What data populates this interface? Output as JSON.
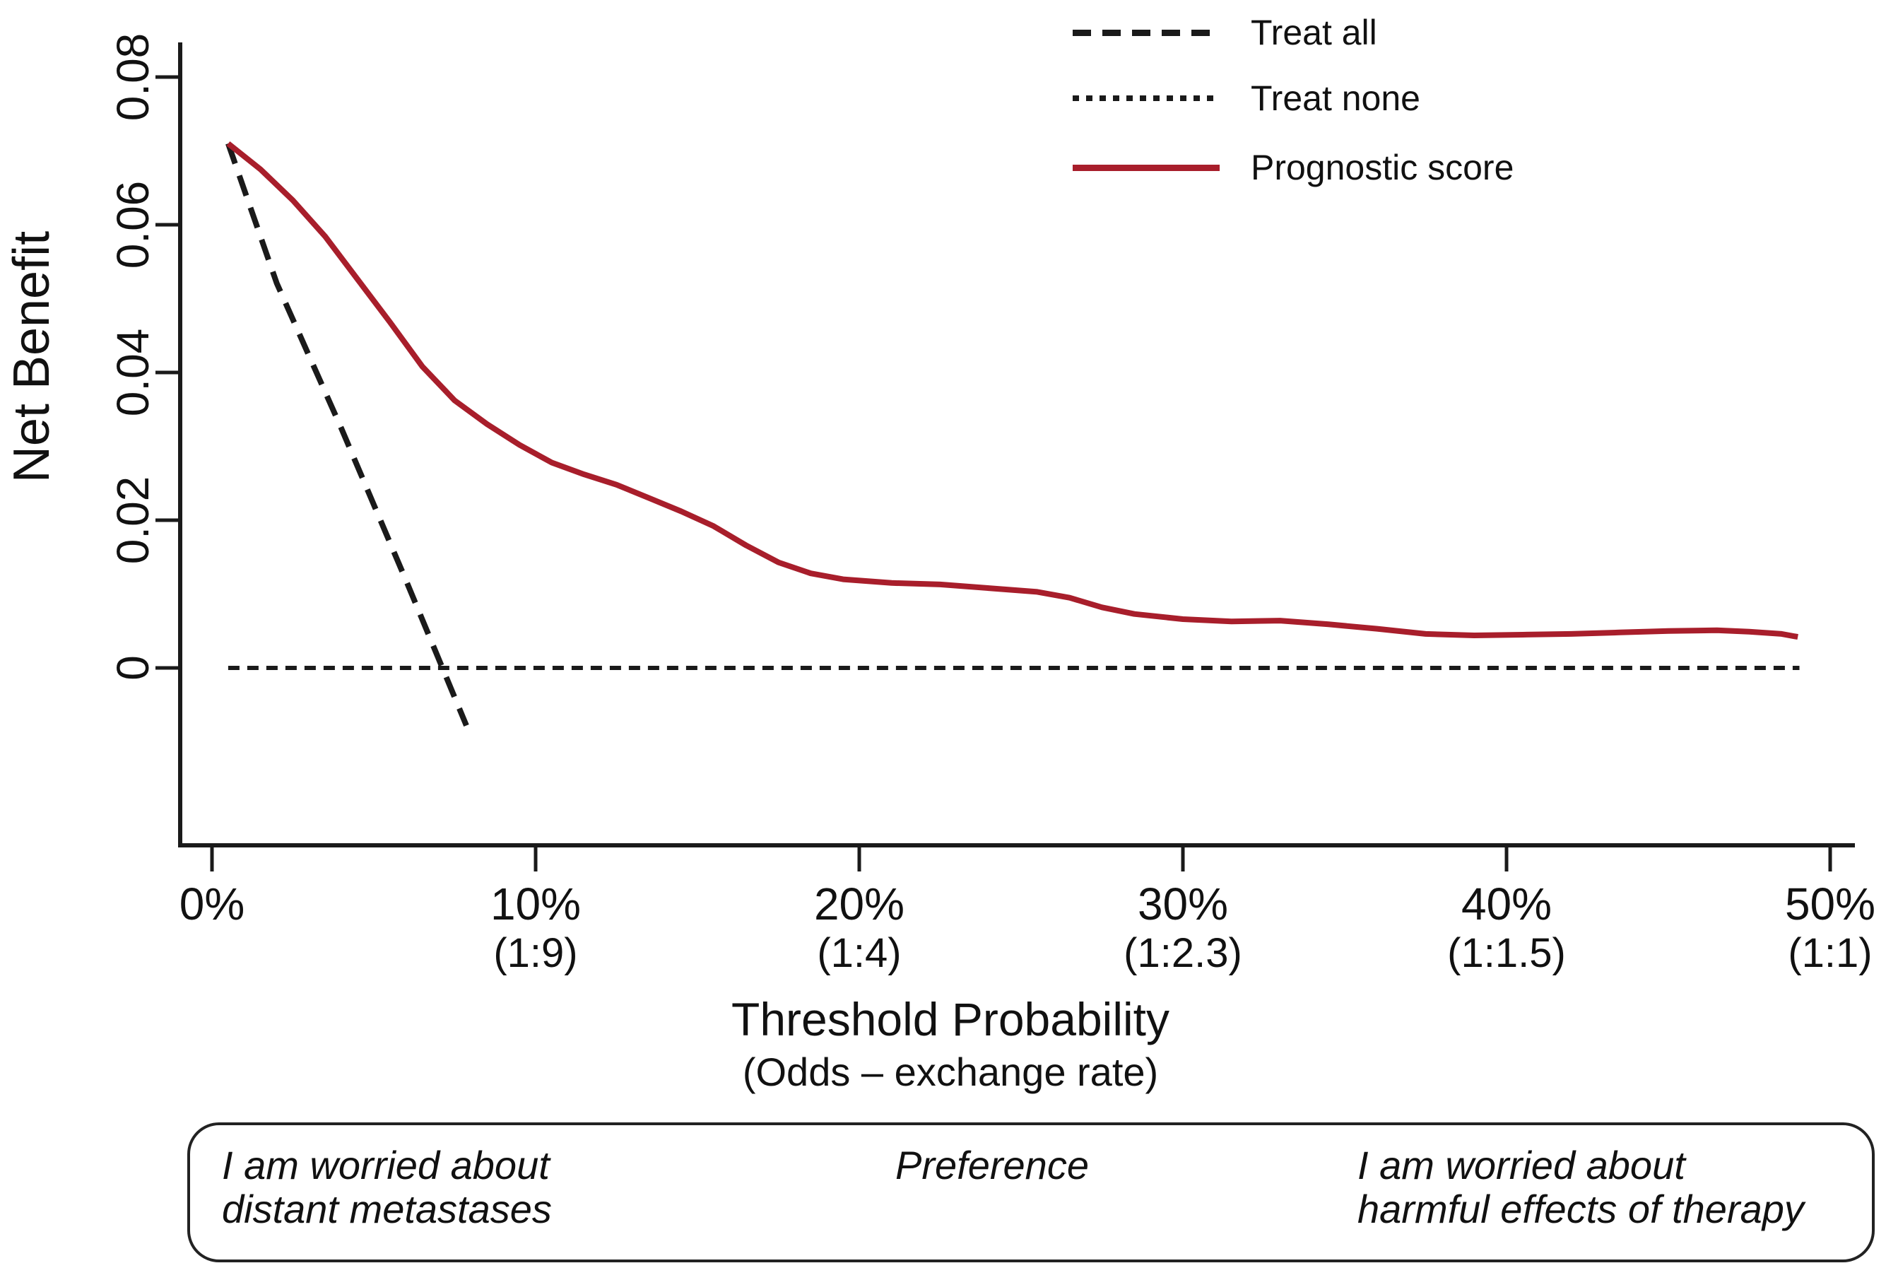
{
  "yaxis": {
    "title": "Net Benefit",
    "ticks": [
      {
        "value": 0.08,
        "label": "0.08"
      },
      {
        "value": 0.06,
        "label": "0.06"
      },
      {
        "value": 0.04,
        "label": "0.04"
      },
      {
        "value": 0.02,
        "label": "0.02"
      },
      {
        "value": 0,
        "label": "0"
      }
    ]
  },
  "xaxis": {
    "title": "Threshold Probability",
    "subtitle": "(Odds – exchange rate)",
    "ticks": [
      {
        "value": 0.0,
        "label": "0%",
        "sublabel": ""
      },
      {
        "value": 0.1,
        "label": "10%",
        "sublabel": "(1:9)"
      },
      {
        "value": 0.2,
        "label": "20%",
        "sublabel": "(1:4)"
      },
      {
        "value": 0.3,
        "label": "30%",
        "sublabel": "(1:2.3)"
      },
      {
        "value": 0.4,
        "label": "40%",
        "sublabel": "(1:1.5)"
      },
      {
        "value": 0.5,
        "label": "50%",
        "sublabel": "(1:1)"
      }
    ]
  },
  "legend": [
    {
      "label": "Treat all",
      "style": "dashed",
      "color": "#1a1a1a"
    },
    {
      "label": "Treat none",
      "style": "dotted",
      "color": "#1a1a1a"
    },
    {
      "label": "Prognostic score",
      "style": "solid",
      "color": "#a81e2b"
    }
  ],
  "annotation_box": {
    "left": {
      "line1": "I am worried about",
      "line2": "distant metastases"
    },
    "center": "Preference",
    "right": {
      "line1": "I am worried about",
      "line2": "harmful effects of therapy"
    }
  },
  "colors": {
    "prognostic_red": "#a81e2b",
    "axis_black": "#1a1a1a",
    "background": "#ffffff"
  },
  "chart_data": {
    "type": "line",
    "xlabel": "Threshold Probability",
    "ylabel": "Net Benefit",
    "xlim": [
      0,
      0.5
    ],
    "ylim": [
      -0.024,
      0.08
    ],
    "grid": false,
    "legend_position": "top-right",
    "x_ticks": [
      0,
      0.1,
      0.2,
      0.3,
      0.4,
      0.5
    ],
    "y_ticks": [
      0.08,
      0.06,
      0.04,
      0.02,
      0
    ],
    "series": [
      {
        "name": "Treat all",
        "style": "dashed",
        "color": "#1a1a1a",
        "points": [
          [
            0.005,
            0.071
          ],
          [
            0.02,
            0.0521
          ],
          [
            0.04,
            0.0324
          ],
          [
            0.06,
            0.0118
          ],
          [
            0.0786,
            -0.0078
          ]
        ]
      },
      {
        "name": "Treat none",
        "style": "dotted",
        "color": "#1a1a1a",
        "points": [
          [
            0.005,
            0
          ],
          [
            0.4905,
            0
          ]
        ]
      },
      {
        "name": "Prognostic score",
        "style": "solid",
        "color": "#a81e2b",
        "points": [
          [
            0.005,
            0.071
          ],
          [
            0.015,
            0.0675
          ],
          [
            0.025,
            0.0633
          ],
          [
            0.035,
            0.0584
          ],
          [
            0.045,
            0.0526
          ],
          [
            0.055,
            0.0468
          ],
          [
            0.065,
            0.0408
          ],
          [
            0.075,
            0.0362
          ],
          [
            0.085,
            0.033
          ],
          [
            0.095,
            0.0302
          ],
          [
            0.105,
            0.0278
          ],
          [
            0.115,
            0.0262
          ],
          [
            0.125,
            0.0248
          ],
          [
            0.135,
            0.023
          ],
          [
            0.145,
            0.0212
          ],
          [
            0.155,
            0.0192
          ],
          [
            0.165,
            0.0166
          ],
          [
            0.175,
            0.0143
          ],
          [
            0.185,
            0.0128
          ],
          [
            0.195,
            0.012
          ],
          [
            0.21,
            0.0115
          ],
          [
            0.225,
            0.0113
          ],
          [
            0.24,
            0.0108
          ],
          [
            0.255,
            0.0103
          ],
          [
            0.265,
            0.0095
          ],
          [
            0.275,
            0.0082
          ],
          [
            0.285,
            0.0073
          ],
          [
            0.3,
            0.0066
          ],
          [
            0.315,
            0.0063
          ],
          [
            0.33,
            0.0064
          ],
          [
            0.345,
            0.0059
          ],
          [
            0.36,
            0.0053
          ],
          [
            0.375,
            0.0046
          ],
          [
            0.39,
            0.0044
          ],
          [
            0.405,
            0.0045
          ],
          [
            0.42,
            0.0046
          ],
          [
            0.435,
            0.0048
          ],
          [
            0.45,
            0.005
          ],
          [
            0.465,
            0.0051
          ],
          [
            0.475,
            0.0049
          ],
          [
            0.485,
            0.0046
          ],
          [
            0.49,
            0.0042
          ]
        ]
      }
    ]
  }
}
